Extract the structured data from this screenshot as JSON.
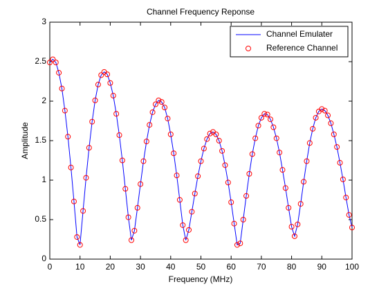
{
  "chart_data": {
    "type": "line",
    "title": "Channel Frequency Reponse",
    "x_label": "Frequency (MHz)",
    "y_label": "Amplitude",
    "x": [
      0,
      1,
      2,
      3,
      4,
      5,
      6,
      7,
      8,
      9,
      10,
      11,
      12,
      13,
      14,
      15,
      16,
      17,
      18,
      19,
      20,
      21,
      22,
      23,
      24,
      25,
      26,
      27,
      28,
      29,
      30,
      31,
      32,
      33,
      34,
      35,
      36,
      37,
      38,
      39,
      40,
      41,
      42,
      43,
      44,
      45,
      46,
      47,
      48,
      49,
      50,
      51,
      52,
      53,
      54,
      55,
      56,
      57,
      58,
      59,
      60,
      61,
      62,
      63,
      64,
      65,
      66,
      67,
      68,
      69,
      70,
      71,
      72,
      73,
      74,
      75,
      76,
      77,
      78,
      79,
      80,
      81,
      82,
      83,
      84,
      85,
      86,
      87,
      88,
      89,
      90,
      91,
      92,
      93,
      94,
      95,
      96,
      97,
      98,
      99,
      100
    ],
    "series": [
      {
        "name": "Channel Emulater",
        "color": "#0000ff",
        "marker": "none",
        "values": [
          2.49,
          2.53,
          2.49,
          2.36,
          2.16,
          1.88,
          1.55,
          1.16,
          0.73,
          0.28,
          0.18,
          0.61,
          1.03,
          1.41,
          1.74,
          2.01,
          2.21,
          2.33,
          2.37,
          2.34,
          2.23,
          2.07,
          1.84,
          1.57,
          1.25,
          0.89,
          0.53,
          0.24,
          0.36,
          0.65,
          0.95,
          1.24,
          1.49,
          1.7,
          1.86,
          1.96,
          2.01,
          1.99,
          1.92,
          1.78,
          1.58,
          1.34,
          1.06,
          0.75,
          0.43,
          0.24,
          0.37,
          0.6,
          0.83,
          1.05,
          1.24,
          1.4,
          1.52,
          1.59,
          1.61,
          1.58,
          1.5,
          1.37,
          1.19,
          0.97,
          0.72,
          0.45,
          0.18,
          0.2,
          0.5,
          0.8,
          1.08,
          1.33,
          1.53,
          1.69,
          1.79,
          1.84,
          1.83,
          1.77,
          1.67,
          1.53,
          1.35,
          1.13,
          0.9,
          0.65,
          0.41,
          0.29,
          0.44,
          0.7,
          0.98,
          1.24,
          1.47,
          1.65,
          1.79,
          1.87,
          1.9,
          1.88,
          1.82,
          1.72,
          1.58,
          1.42,
          1.22,
          1.01,
          0.78,
          0.56,
          0.4
        ]
      },
      {
        "name": "Reference Channel",
        "color": "#ff0000",
        "marker": "circle",
        "values": [
          2.49,
          2.53,
          2.49,
          2.36,
          2.16,
          1.88,
          1.55,
          1.16,
          0.73,
          0.28,
          0.18,
          0.61,
          1.03,
          1.41,
          1.74,
          2.01,
          2.21,
          2.33,
          2.37,
          2.34,
          2.23,
          2.07,
          1.84,
          1.57,
          1.25,
          0.89,
          0.53,
          0.24,
          0.36,
          0.65,
          0.95,
          1.24,
          1.49,
          1.7,
          1.86,
          1.96,
          2.01,
          1.99,
          1.92,
          1.78,
          1.58,
          1.34,
          1.06,
          0.75,
          0.43,
          0.24,
          0.37,
          0.6,
          0.83,
          1.05,
          1.24,
          1.4,
          1.52,
          1.59,
          1.61,
          1.58,
          1.5,
          1.37,
          1.19,
          0.97,
          0.72,
          0.45,
          0.18,
          0.2,
          0.5,
          0.8,
          1.08,
          1.33,
          1.53,
          1.69,
          1.79,
          1.84,
          1.83,
          1.77,
          1.67,
          1.53,
          1.35,
          1.13,
          0.9,
          0.65,
          0.41,
          0.29,
          0.44,
          0.7,
          0.98,
          1.24,
          1.47,
          1.65,
          1.79,
          1.87,
          1.9,
          1.88,
          1.82,
          1.72,
          1.58,
          1.42,
          1.22,
          1.01,
          0.78,
          0.56,
          0.4
        ]
      }
    ],
    "xlim": [
      0,
      100
    ],
    "xticks": [
      0,
      10,
      20,
      30,
      40,
      50,
      60,
      70,
      80,
      90,
      100
    ],
    "ylim": [
      0,
      3
    ],
    "yticks": [
      0,
      0.5,
      1,
      1.5,
      2,
      2.5,
      3
    ],
    "grid": false,
    "legend": "northeast"
  }
}
